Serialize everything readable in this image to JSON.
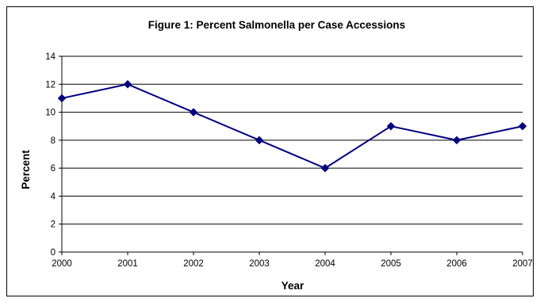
{
  "chart_data": {
    "type": "line",
    "title": "Figure 1: Percent Salmonella per Case Accessions",
    "xlabel": "Year",
    "ylabel": "Percent",
    "categories": [
      "2000",
      "2001",
      "2002",
      "2003",
      "2004",
      "2005",
      "2006",
      "2007"
    ],
    "series": [
      {
        "values": [
          11,
          12,
          10,
          8,
          6,
          9,
          8,
          9
        ]
      }
    ],
    "ylim": [
      0,
      14
    ],
    "yticks": [
      0,
      2,
      4,
      6,
      8,
      10,
      12,
      14
    ],
    "grid": true,
    "legend": "none",
    "colors": {
      "line": "#000080",
      "marker": "#000080",
      "grid": "#000000"
    }
  }
}
